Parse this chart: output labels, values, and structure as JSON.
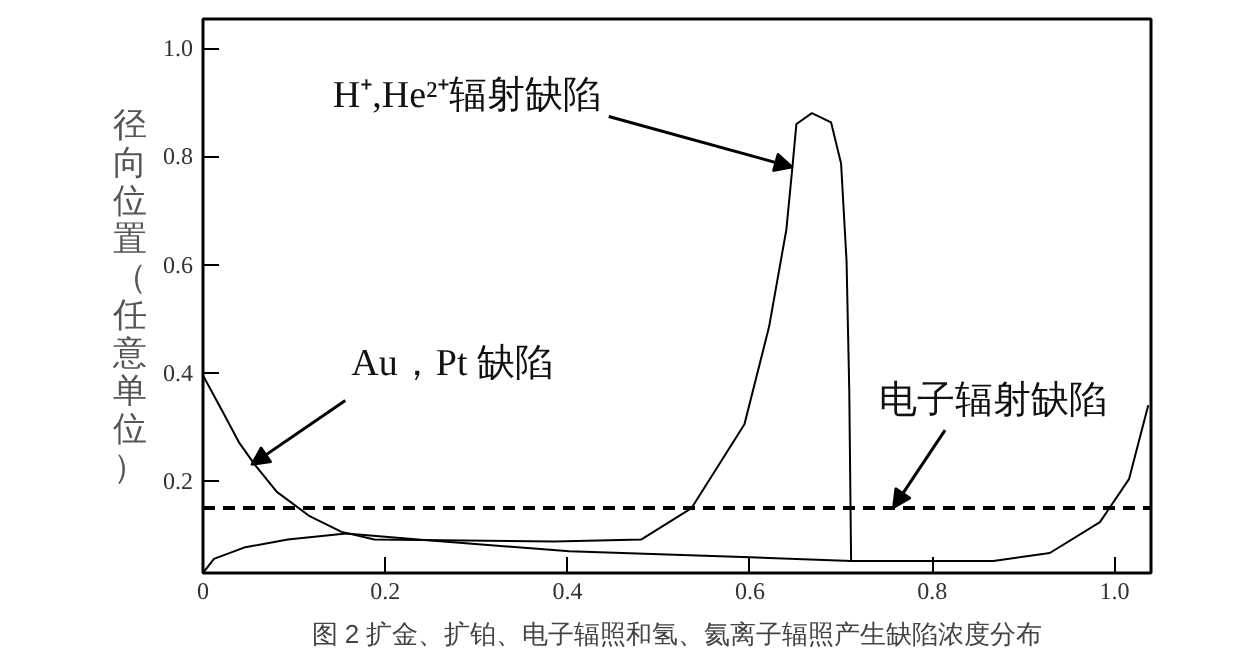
{
  "chart_data": {
    "type": "line",
    "ylabel": "径向位置（任意单位）",
    "xlim": [
      0,
      1.04
    ],
    "ylim": [
      0.03,
      1.054
    ],
    "xticks": [
      0,
      0.2,
      0.4,
      0.6,
      0.8,
      {
        "value": 1,
        "label": "1.0"
      }
    ],
    "yticks": [
      0.2,
      0.4,
      0.6,
      0.8,
      {
        "value": 1,
        "label": "1.0"
      }
    ],
    "grid": false,
    "marker": "none",
    "line_style": "solid",
    "series": [
      {
        "color": "#000000",
        "x": [
          0,
          0.021,
          0.04,
          0.057,
          0.081,
          0.117,
          0.152,
          0.188,
          0.386,
          0.481,
          0.536,
          0.594,
          0.621,
          0.64,
          0.647,
          0.651,
          0.668,
          0.689,
          0.7,
          0.706,
          0.709,
          0.711
        ],
        "values": [
          0.395,
          0.33,
          0.27,
          0.23,
          0.18,
          0.135,
          0.106,
          0.092,
          0.088,
          0.092,
          0.15,
          0.305,
          0.485,
          0.665,
          0.787,
          0.86,
          0.88,
          0.863,
          0.787,
          0.607,
          0.366,
          0.052
        ]
      },
      {
        "color": "#000000",
        "x": [
          0,
          0.012,
          0.045,
          0.093,
          0.157,
          0.236,
          0.402,
          0.6,
          0.711,
          0.867,
          0.929,
          0.984,
          1.016,
          1.037
        ],
        "values": [
          0.03,
          0.056,
          0.077,
          0.092,
          0.103,
          0.092,
          0.07,
          0.059,
          0.052,
          0.052,
          0.067,
          0.124,
          0.204,
          0.34
        ]
      }
    ],
    "ref_lines": [
      {
        "axis": "y",
        "value": 0.15,
        "color": "#000000",
        "line_style": "dashed"
      }
    ],
    "annotations": [
      {
        "text": "H⁺,He²⁺辐射缺陷",
        "x": 0.647,
        "y": 0.78
      },
      {
        "text": "Au，Pt 缺陷",
        "x": 0.053,
        "y": 0.23
      },
      {
        "text": "电子辐射缺陷",
        "x": 0.757,
        "y": 0.15
      },
      "图 2 扩金、扩铂、电子辐照和氢、氦离子辐照产生缺陷浓度分布"
    ]
  }
}
